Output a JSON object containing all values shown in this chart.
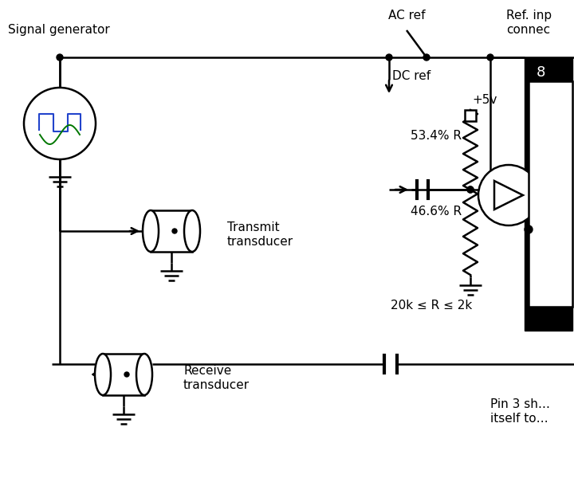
{
  "bg_color": "#ffffff",
  "line_color": "#000000",
  "blue_color": "#2244cc",
  "green_color": "#007700",
  "figsize": [
    7.2,
    6.0
  ],
  "dpi": 100,
  "labels": {
    "signal_gen": "Signal generator",
    "transmit1": "Transmit",
    "transmit2": "transducer",
    "receive1": "Receive",
    "receive2": "transducer",
    "ac_ref": "AC ref",
    "dc_ref": "DC ref",
    "plus5v": "+5v",
    "r534": "53.4% R",
    "r466": "46.6% R",
    "r_range": "20k ≤ R ≤ 2k",
    "ref_inp1": "Ref. inp",
    "ref_inp2": "connec",
    "num8": "8",
    "pin3_1": "Pin 3 sh…",
    "pin3_2": "itself to…"
  }
}
